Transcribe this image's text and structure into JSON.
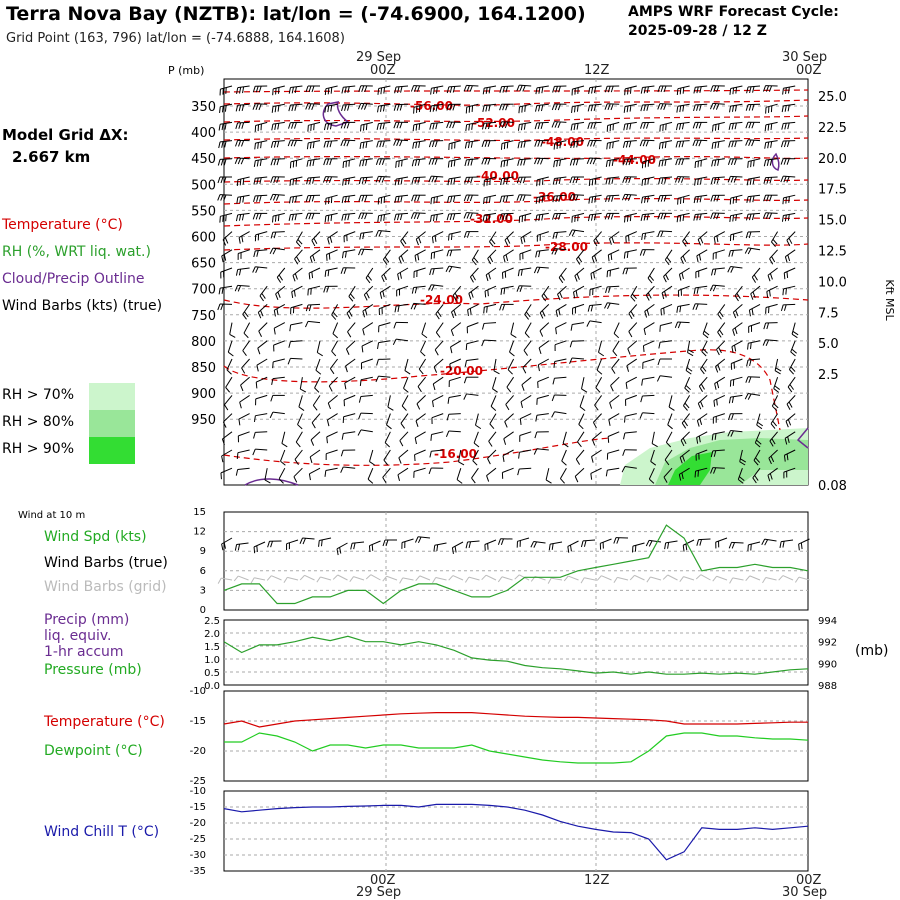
{
  "header": {
    "title": "Terra Nova Bay (NZTB):  lat/lon = (-74.6900, 164.1200)",
    "grid_point": "Grid Point (163, 796) lat/lon = (-74.6888, 164.1608)",
    "cycle_line1": "AMPS WRF Forecast Cycle:",
    "cycle_line2": "2025-09-28 / 12  Z",
    "model_grid_label": "Model Grid ΔX:",
    "model_grid_value": "2.667 km"
  },
  "colors": {
    "temperature": "#d40000",
    "rh": "#2ca02c",
    "cloud": "#6a2c91",
    "dewpoint": "#22cc22",
    "windchill": "#1a1aaa",
    "grid_barb": "#bbbbbb"
  },
  "legend": {
    "temperature": "Temperature (°C)",
    "rh": "RH (%, WRT liq. wat.)",
    "cloud": "Cloud/Precip Outline",
    "wind": "Wind Barbs (kts) (true)",
    "rh70": "RH > 70%",
    "rh80": "RH > 80%",
    "rh90": "RH > 90%",
    "wind10m": "Wind at 10 m",
    "wind_spd": "Wind Spd (kts)",
    "wind_barbs_true": "Wind Barbs (true)",
    "wind_barbs_grid": "Wind Barbs (grid)",
    "precip1": "Precip (mm)",
    "precip2": "liq. equiv.",
    "precip3": "1-hr accum",
    "pressure": "Pressure (mb)",
    "pressure_unit": "(mb)",
    "temp2": "Temperature (°C)",
    "dewpoint": "Dewpoint (°C)",
    "windchill": "Wind Chill T (°C)"
  },
  "time_axis": {
    "top_dates": [
      "29 Sep",
      "30 Sep"
    ],
    "top_hours": [
      "00Z",
      "12Z",
      "00Z"
    ],
    "bottom_hours": [
      "00Z",
      "12Z",
      "00Z"
    ],
    "bottom_dates": [
      "29 Sep",
      "30 Sep"
    ]
  },
  "chart_data": [
    {
      "type": "line",
      "panel": "upper-air cross section",
      "ylabel": "P (mb)",
      "ylabel_right": "Kft MSL",
      "pressure_ticks": [
        "350",
        "400",
        "450",
        "500",
        "550",
        "600",
        "650",
        "700",
        "750",
        "800",
        "850",
        "900",
        "950"
      ],
      "height_ticks": [
        "25.0",
        "22.5",
        "20.0",
        "17.5",
        "15.0",
        "12.5",
        "10.0",
        "7.5",
        "5.0",
        "2.5",
        "0.08"
      ],
      "isotherm_labels": [
        "-56.00",
        "-52.00",
        "-48.00",
        "-44.00",
        "-40.00",
        "-36.00",
        "-32.00",
        "-28.00",
        "-24.00",
        "-20.00",
        "-16.00"
      ]
    },
    {
      "type": "line",
      "panel": "10 m wind speed",
      "yticks": [
        "15",
        "12",
        "9",
        "6",
        "3",
        "0"
      ],
      "ylim": [
        0,
        15
      ],
      "series": [
        {
          "name": "Wind Spd (kts)",
          "values": [
            3,
            4,
            4,
            1,
            1,
            2,
            2,
            3,
            3,
            1,
            3,
            4,
            4,
            3,
            2,
            2,
            3,
            5,
            5,
            5,
            6,
            6.5,
            7,
            7.5,
            8,
            13,
            11,
            6,
            6.5,
            6.5,
            7,
            6.5,
            6.5,
            6
          ]
        }
      ]
    },
    {
      "type": "line",
      "panel": "precip and pressure",
      "yticks_left": [
        "2.5",
        "2.0",
        "1.5",
        "1.0",
        "0.5",
        "0.0"
      ],
      "yticks_right": [
        "994",
        "992",
        "990",
        "988"
      ],
      "ylim": [
        988,
        994
      ],
      "series": [
        {
          "name": "Pressure (mb)",
          "values": [
            992,
            991,
            991.7,
            991.7,
            992,
            992.4,
            992.1,
            992.5,
            992,
            992,
            991.7,
            992,
            991.7,
            991.2,
            990.5,
            990.3,
            990.2,
            989.8,
            989.6,
            989.5,
            989.3,
            989.1,
            989.2,
            989,
            989.2,
            989,
            989,
            989.1,
            989,
            989.1,
            989,
            989.2,
            989.4,
            989.5
          ]
        }
      ]
    },
    {
      "type": "line",
      "panel": "temperature and dewpoint",
      "yticks": [
        "-10",
        "-15",
        "-20",
        "-25"
      ],
      "ylim": [
        -25,
        -10
      ],
      "series": [
        {
          "name": "Temperature (°C)",
          "values": [
            -15.5,
            -15,
            -16,
            -15.5,
            -15,
            -14.8,
            -14.6,
            -14.4,
            -14.2,
            -14,
            -13.8,
            -13.7,
            -13.6,
            -13.6,
            -13.6,
            -13.8,
            -14,
            -14.2,
            -14.3,
            -14.4,
            -14.4,
            -14.5,
            -14.6,
            -14.7,
            -14.8,
            -15,
            -15.5,
            -15.5,
            -15.5,
            -15.5,
            -15.4,
            -15.3,
            -15.2,
            -15.2
          ]
        },
        {
          "name": "Dewpoint (°C)",
          "values": [
            -18.5,
            -18.5,
            -17,
            -17.5,
            -18.5,
            -20,
            -19,
            -19,
            -19.5,
            -19,
            -19,
            -19.5,
            -19.5,
            -19.5,
            -19,
            -20,
            -20.5,
            -21,
            -21.5,
            -21.8,
            -22,
            -22,
            -22,
            -21.8,
            -20,
            -17.5,
            -17,
            -17,
            -17.5,
            -17.5,
            -17.8,
            -18,
            -18,
            -18.2
          ]
        }
      ]
    },
    {
      "type": "line",
      "panel": "wind chill",
      "yticks": [
        "-10",
        "-15",
        "-20",
        "-25",
        "-30",
        "-35"
      ],
      "ylim": [
        -35,
        -10
      ],
      "series": [
        {
          "name": "Wind Chill T (°C)",
          "values": [
            -15.5,
            -16.5,
            -16,
            -15.5,
            -15.2,
            -15,
            -15,
            -14.8,
            -14.7,
            -14.5,
            -14.5,
            -15,
            -14.2,
            -14.2,
            -14.2,
            -14.5,
            -15,
            -16,
            -17.5,
            -19.5,
            -21,
            -22,
            -22.8,
            -23,
            -25,
            -31.5,
            -29,
            -21.5,
            -22,
            -22,
            -21.5,
            -22,
            -21.5,
            -21
          ]
        }
      ]
    }
  ]
}
